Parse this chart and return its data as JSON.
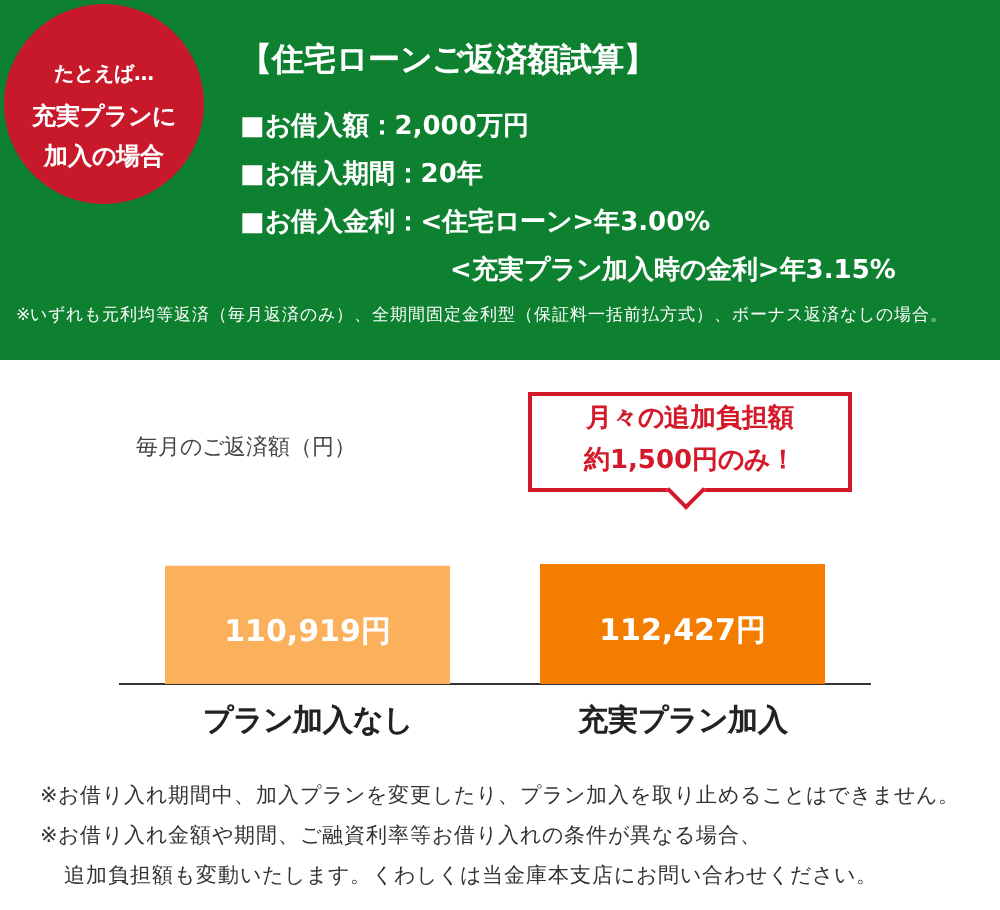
{
  "chart_data": {
    "type": "bar",
    "title": "【住宅ローンご返済額試算】",
    "ylabel": "毎月のご返済額（円）",
    "categories": [
      "プラン加入なし",
      "充実プラン加入"
    ],
    "values": [
      110919,
      112427
    ],
    "colors": [
      "#fbb05c",
      "#f47d00"
    ],
    "value_labels": [
      "110,919円",
      "112,427円"
    ],
    "tick_labels": "x",
    "grid": false,
    "legend": false,
    "annotations": [
      "たとえば…",
      "充実プランに",
      "加入の場合",
      "■お借入額：2,000万円",
      "■お借入期間：20年",
      "■お借入金利：<住宅ローン>年3.00%",
      "<充実プラン加入時の金利>年3.15%",
      "※いずれも元利均等返済（毎月返済のみ）、全期間固定金利型（保証料一括前払方式）、ボーナス返済なしの場合。",
      "月々の追加負担額",
      "約1,500円のみ！",
      "※お借り入れ期間中、加入プランを変更したり、プラン加入を取り止めることはできません。",
      "※お借り入れ金額や期間、ご融資利率等お借り入れの条件が異なる場合、",
      "追加負担額も変動いたします。くわしくは当金庫本支店にお問い合わせください。"
    ]
  }
}
